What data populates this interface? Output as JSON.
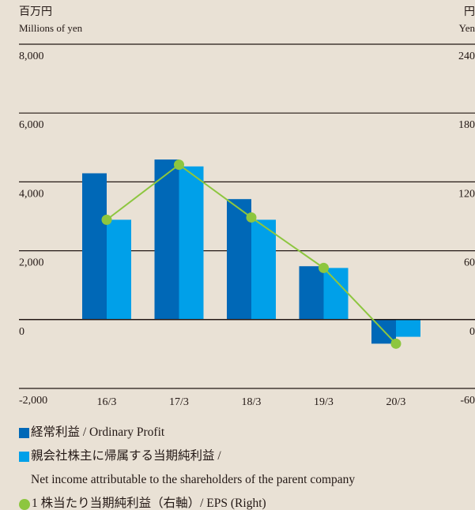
{
  "chart_data": {
    "type": "bar",
    "y_unit_ja": "百万円",
    "y_unit": "Millions of yen",
    "y2_unit_ja": "円",
    "y2_unit": "Yen",
    "categories": [
      "16/3",
      "17/3",
      "18/3",
      "19/3",
      "20/3"
    ],
    "series": [
      {
        "name": "経常利益 / Ordinary Profit",
        "color": "#0068b7",
        "type": "bar",
        "values": [
          4250,
          4650,
          3500,
          1550,
          -700
        ]
      },
      {
        "name": "親会社株主に帰属する当期純利益 /\nNet income attributable to the shareholders of the parent company",
        "color": "#00a0e9",
        "type": "bar",
        "values": [
          2900,
          4450,
          2900,
          1500,
          -500
        ]
      },
      {
        "name": "1 株当たり当期純利益（右軸）/ EPS (Right)",
        "color": "#8dc63f",
        "type": "line",
        "axis": "y2",
        "values": [
          87,
          135,
          89,
          45,
          -21
        ]
      }
    ],
    "ylim": [
      -2000,
      8000
    ],
    "yticks": [
      {
        "value": -2000,
        "label": "-2,000"
      },
      0,
      {
        "value": 2000,
        "label": "2,000"
      },
      {
        "value": 4000,
        "label": "4,000"
      },
      {
        "value": 6000,
        "label": "6,000"
      },
      {
        "value": 8000,
        "label": "8,000"
      }
    ],
    "y2lim": [
      -60,
      240
    ],
    "y2ticks": [
      -60,
      0,
      60,
      120,
      180,
      240
    ],
    "grid": true
  }
}
